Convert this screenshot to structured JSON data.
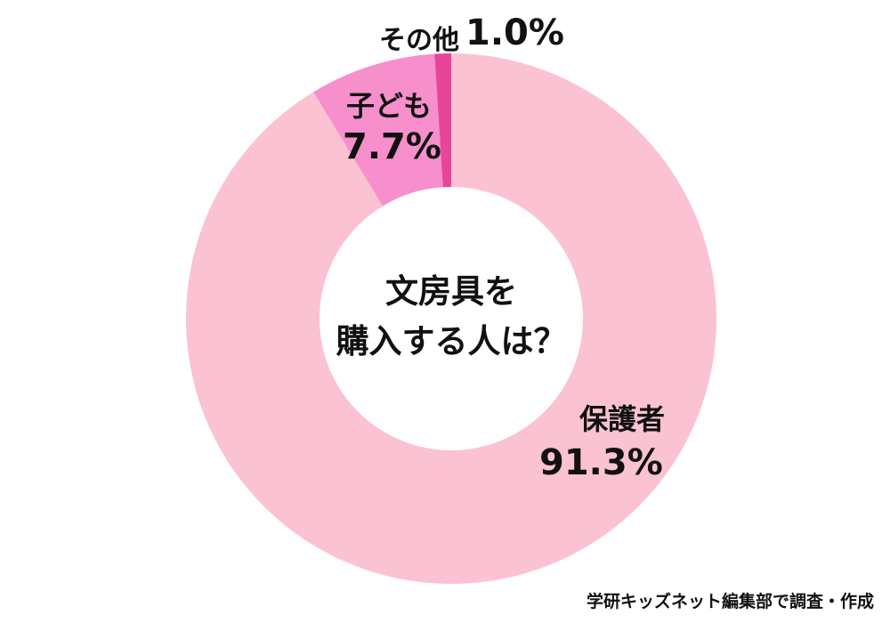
{
  "chart_data": {
    "type": "pie",
    "donut": true,
    "center_title_lines": [
      "文房具を",
      "購入する人は？"
    ],
    "categories": [
      "保護者",
      "子ども",
      "その他"
    ],
    "values": [
      91.3,
      7.7,
      1.0
    ],
    "value_labels": [
      "91.3%",
      "7.7%",
      "1.0%"
    ],
    "colors": [
      "#fbc2d2",
      "#f78fcd",
      "#e8449a"
    ]
  },
  "source": "学研キッズネット編集部で調査・作成"
}
